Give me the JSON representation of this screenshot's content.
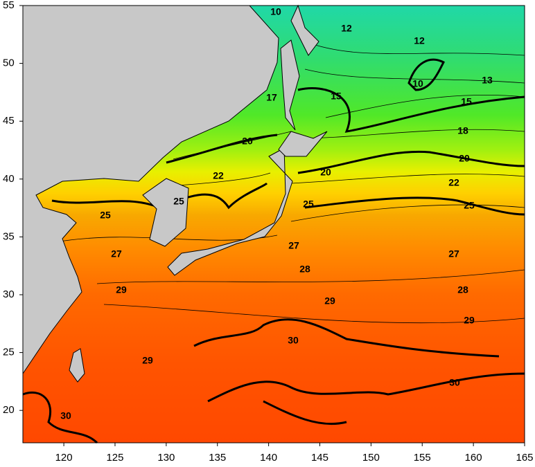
{
  "map": {
    "xlim": [
      116,
      165
    ],
    "ylim": [
      17.2,
      55
    ],
    "xticks": [
      120,
      125,
      130,
      135,
      140,
      145,
      150,
      155,
      160,
      165
    ],
    "yticks": [
      20,
      25,
      30,
      35,
      40,
      45,
      50,
      55
    ],
    "contour_labels": [
      10,
      12,
      12,
      10,
      13,
      17,
      15,
      15,
      18,
      20,
      20,
      20,
      22,
      22,
      25,
      25,
      25,
      25,
      27,
      27,
      27,
      28,
      28,
      29,
      29,
      29,
      29,
      30,
      30,
      30
    ]
  }
}
